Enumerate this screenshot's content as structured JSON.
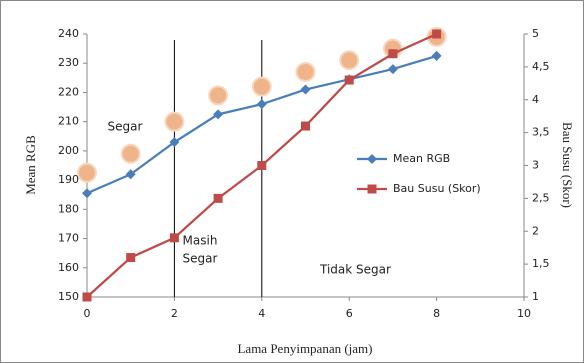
{
  "chart_data": {
    "type": "line",
    "x_label": "Lama Penyimpanan (jam)",
    "y_label": "Mean RGB",
    "y2_label": "Bau Susu (Skor)",
    "x": [
      0,
      1,
      2,
      3,
      4,
      5,
      6,
      7,
      8
    ],
    "series": [
      {
        "name": "Mean RGB",
        "color": "#4a7ebb",
        "marker": "diamond",
        "values": [
          185.5,
          192,
          203,
          212.5,
          216,
          221,
          224.5,
          228,
          232.5
        ]
      },
      {
        "name": "Bau Susu (Skor)",
        "color": "#be4b48",
        "marker": "square",
        "axis": "y2",
        "values": [
          1,
          1.6,
          1.9,
          2.5,
          3,
          3.6,
          4.3,
          4.7,
          5
        ]
      }
    ],
    "sample_markers": {
      "color": "#f0b48a",
      "values": [
        192.5,
        199,
        210,
        219,
        222,
        227,
        231,
        235,
        239
      ]
    },
    "vlines": [
      2,
      4
    ],
    "annotations": [
      "Segar",
      "Masih",
      "Segar",
      "Tidak Segar"
    ],
    "xlim": [
      0,
      10
    ],
    "xticks": [
      0,
      2,
      4,
      6,
      8,
      10
    ],
    "ylim": [
      150,
      240
    ],
    "yticks": [
      150,
      160,
      170,
      180,
      190,
      200,
      210,
      220,
      230,
      240
    ],
    "y2lim": [
      1,
      5
    ],
    "y2ticks": [
      1,
      {
        "value": 1.5,
        "label": "1,5"
      },
      2,
      {
        "value": 2.5,
        "label": "2,5"
      },
      3,
      {
        "value": 3.5,
        "label": "3,5"
      },
      4,
      {
        "value": 4.5,
        "label": "4,5"
      },
      5
    ],
    "grid": false,
    "legend": "right"
  }
}
